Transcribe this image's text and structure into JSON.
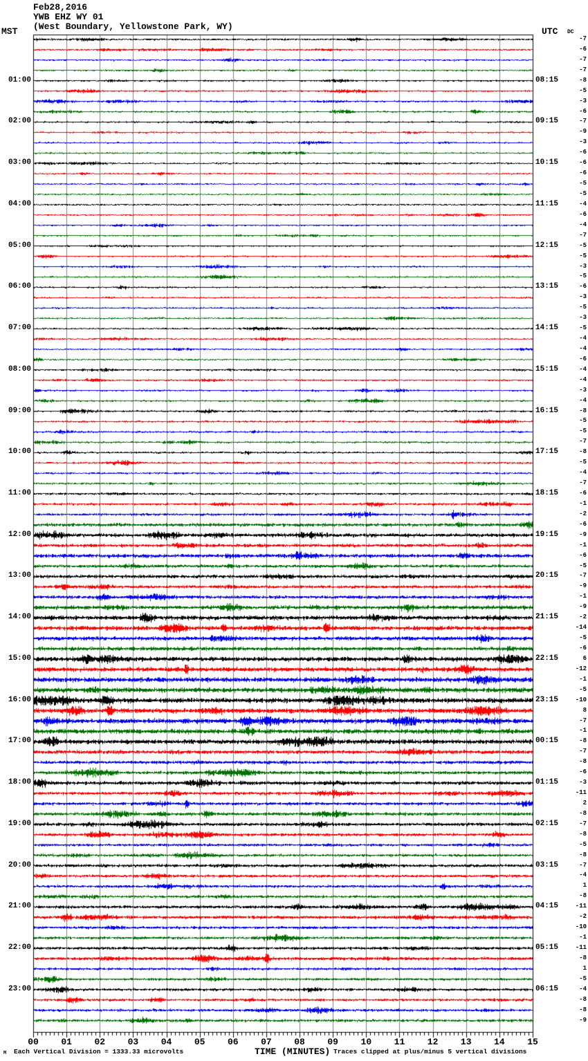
{
  "header": {
    "date": "Feb28,2016",
    "station": "YWB EHZ WY 01",
    "location": "(West Boundary, Yellowstone Park, WY)"
  },
  "axes": {
    "left_header": "MST",
    "right_header": "UTC",
    "dc_header": "DC"
  },
  "footer": {
    "corner_mark": "M",
    "scale_note": "Each Vertical Division = 1333.33 microvolts",
    "time_axis_label": "TIME (MINUTES)",
    "clip_note": "Traces clipped at plus/minus 5 vertical divisions"
  },
  "chart_data": {
    "type": "heliplot-seismogram",
    "title": "YWB EHZ WY 01 (West Boundary, Yellowstone Park, WY) Feb28,2016",
    "xlabel": "TIME (MINUTES)",
    "x_range_minutes": [
      0,
      15
    ],
    "x_tick_labels": [
      "00",
      "01",
      "02",
      "03",
      "04",
      "05",
      "06",
      "07",
      "08",
      "09",
      "10",
      "11",
      "12",
      "13",
      "14",
      "15"
    ],
    "minutes_per_line": 15,
    "rows_per_hour": 4,
    "left_time_zone": "MST",
    "right_time_zone": "UTC",
    "trace_color_cycle": [
      "#000000",
      "#ff0000",
      "#0000ee",
      "#007000"
    ],
    "grid_color": "#7f7f7f",
    "clip_divisions": 5,
    "microvolts_per_division": "1333.33",
    "rows": [
      {
        "m": "",
        "u": "",
        "dc": -7,
        "a": 1.0
      },
      {
        "m": "",
        "u": "",
        "dc": -6,
        "a": 1.0
      },
      {
        "m": "",
        "u": "",
        "dc": -7,
        "a": 1.0
      },
      {
        "m": "",
        "u": "",
        "dc": -7,
        "a": 1.0
      },
      {
        "m": "01:00",
        "u": "08:15",
        "dc": -8,
        "a": 1.0
      },
      {
        "m": "",
        "u": "",
        "dc": -5,
        "a": 1.0
      },
      {
        "m": "",
        "u": "",
        "dc": -3,
        "a": 1.0
      },
      {
        "m": "",
        "u": "",
        "dc": -6,
        "a": 1.0
      },
      {
        "m": "02:00",
        "u": "09:15",
        "dc": -7,
        "a": 0.9
      },
      {
        "m": "",
        "u": "",
        "dc": -9,
        "a": 0.9
      },
      {
        "m": "",
        "u": "",
        "dc": -3,
        "a": 0.9
      },
      {
        "m": "",
        "u": "",
        "dc": -6,
        "a": 0.9
      },
      {
        "m": "03:00",
        "u": "10:15",
        "dc": -6,
        "a": 0.9
      },
      {
        "m": "",
        "u": "",
        "dc": -6,
        "a": 0.9
      },
      {
        "m": "",
        "u": "",
        "dc": -5,
        "a": 0.9
      },
      {
        "m": "",
        "u": "",
        "dc": -5,
        "a": 0.9
      },
      {
        "m": "04:00",
        "u": "11:15",
        "dc": -4,
        "a": 0.9
      },
      {
        "m": "",
        "u": "",
        "dc": -6,
        "a": 0.9
      },
      {
        "m": "",
        "u": "",
        "dc": -4,
        "a": 0.9
      },
      {
        "m": "",
        "u": "",
        "dc": -7,
        "a": 0.9
      },
      {
        "m": "05:00",
        "u": "12:15",
        "dc": -5,
        "a": 0.9
      },
      {
        "m": "",
        "u": "",
        "dc": -5,
        "a": 0.9
      },
      {
        "m": "",
        "u": "",
        "dc": -3,
        "a": 0.9
      },
      {
        "m": "",
        "u": "",
        "dc": -5,
        "a": 0.9
      },
      {
        "m": "06:00",
        "u": "13:15",
        "dc": -6,
        "a": 0.9
      },
      {
        "m": "",
        "u": "",
        "dc": -3,
        "a": 0.9
      },
      {
        "m": "",
        "u": "",
        "dc": -5,
        "a": 0.9
      },
      {
        "m": "",
        "u": "",
        "dc": -3,
        "a": 0.9
      },
      {
        "m": "07:00",
        "u": "14:15",
        "dc": -5,
        "a": 0.9
      },
      {
        "m": "",
        "u": "",
        "dc": -4,
        "a": 0.9
      },
      {
        "m": "",
        "u": "",
        "dc": -4,
        "a": 0.9
      },
      {
        "m": "",
        "u": "",
        "dc": -6,
        "a": 0.9
      },
      {
        "m": "08:00",
        "u": "15:15",
        "dc": -4,
        "a": 1.0
      },
      {
        "m": "",
        "u": "",
        "dc": -4,
        "a": 1.0
      },
      {
        "m": "",
        "u": "",
        "dc": -3,
        "a": 1.0
      },
      {
        "m": "",
        "u": "",
        "dc": -4,
        "a": 1.0
      },
      {
        "m": "09:00",
        "u": "16:15",
        "dc": -8,
        "a": 1.1
      },
      {
        "m": "",
        "u": "",
        "dc": -5,
        "a": 1.1
      },
      {
        "m": "",
        "u": "",
        "dc": -5,
        "a": 1.1
      },
      {
        "m": "",
        "u": "",
        "dc": -7,
        "a": 1.1
      },
      {
        "m": "10:00",
        "u": "17:15",
        "dc": -8,
        "a": 1.1
      },
      {
        "m": "",
        "u": "",
        "dc": -5,
        "a": 1.1
      },
      {
        "m": "",
        "u": "",
        "dc": -4,
        "a": 1.1
      },
      {
        "m": "",
        "u": "",
        "dc": -7,
        "a": 1.1
      },
      {
        "m": "11:00",
        "u": "18:15",
        "dc": -6,
        "a": 1.2
      },
      {
        "m": "",
        "u": "",
        "dc": -1,
        "a": 1.4
      },
      {
        "m": "",
        "u": "",
        "dc": -2,
        "a": 1.4
      },
      {
        "m": "",
        "u": "",
        "dc": -6,
        "a": 2.0
      },
      {
        "m": "12:00",
        "u": "19:15",
        "dc": -9,
        "a": 2.2
      },
      {
        "m": "",
        "u": "",
        "dc": -1,
        "a": 2.0
      },
      {
        "m": "",
        "u": "",
        "dc": -6,
        "a": 2.2
      },
      {
        "m": "",
        "u": "",
        "dc": -5,
        "a": 1.8
      },
      {
        "m": "13:00",
        "u": "20:15",
        "dc": -7,
        "a": 2.0
      },
      {
        "m": "",
        "u": "",
        "dc": -9,
        "a": 1.8
      },
      {
        "m": "",
        "u": "",
        "dc": -1,
        "a": 1.9
      },
      {
        "m": "",
        "u": "",
        "dc": -9,
        "a": 2.4
      },
      {
        "m": "14:00",
        "u": "21:15",
        "dc": -2,
        "a": 2.6
      },
      {
        "m": "",
        "u": "",
        "dc": -14,
        "a": 2.6
      },
      {
        "m": "",
        "u": "",
        "dc": -5,
        "a": 2.4
      },
      {
        "m": "",
        "u": "",
        "dc": -6,
        "a": 2.3
      },
      {
        "m": "15:00",
        "u": "22:15",
        "dc": 6,
        "a": 2.7
      },
      {
        "m": "",
        "u": "",
        "dc": -12,
        "a": 2.7
      },
      {
        "m": "",
        "u": "",
        "dc": -1,
        "a": 2.9
      },
      {
        "m": "",
        "u": "",
        "dc": -5,
        "a": 3.0
      },
      {
        "m": "16:00",
        "u": "23:15",
        "dc": -10,
        "a": 3.0
      },
      {
        "m": "",
        "u": "",
        "dc": 8,
        "a": 2.8
      },
      {
        "m": "",
        "u": "",
        "dc": -7,
        "a": 3.0
      },
      {
        "m": "",
        "u": "",
        "dc": -1,
        "a": 2.9
      },
      {
        "m": "17:00",
        "u": "00:15",
        "dc": -8,
        "a": 2.8
      },
      {
        "m": "",
        "u": "",
        "dc": -7,
        "a": 2.2
      },
      {
        "m": "",
        "u": "",
        "dc": -8,
        "a": 1.9
      },
      {
        "m": "",
        "u": "",
        "dc": -6,
        "a": 2.0
      },
      {
        "m": "18:00",
        "u": "01:15",
        "dc": -3,
        "a": 2.1
      },
      {
        "m": "",
        "u": "",
        "dc": -11,
        "a": 1.8
      },
      {
        "m": "",
        "u": "",
        "dc": 2,
        "a": 1.8
      },
      {
        "m": "",
        "u": "",
        "dc": -8,
        "a": 1.9
      },
      {
        "m": "19:00",
        "u": "02:15",
        "dc": -7,
        "a": 1.9
      },
      {
        "m": "",
        "u": "",
        "dc": -8,
        "a": 1.7
      },
      {
        "m": "",
        "u": "",
        "dc": -5,
        "a": 1.6
      },
      {
        "m": "",
        "u": "",
        "dc": -8,
        "a": 1.6
      },
      {
        "m": "20:00",
        "u": "03:15",
        "dc": -7,
        "a": 1.7
      },
      {
        "m": "",
        "u": "",
        "dc": -4,
        "a": 1.6
      },
      {
        "m": "",
        "u": "",
        "dc": 1,
        "a": 1.6
      },
      {
        "m": "",
        "u": "",
        "dc": -8,
        "a": 1.6
      },
      {
        "m": "21:00",
        "u": "04:15",
        "dc": -11,
        "a": 1.8
      },
      {
        "m": "",
        "u": "",
        "dc": -2,
        "a": 1.9
      },
      {
        "m": "",
        "u": "",
        "dc": -10,
        "a": 1.6
      },
      {
        "m": "",
        "u": "",
        "dc": -1,
        "a": 1.6
      },
      {
        "m": "22:00",
        "u": "05:15",
        "dc": -11,
        "a": 1.8
      },
      {
        "m": "",
        "u": "",
        "dc": -8,
        "a": 1.9
      },
      {
        "m": "",
        "u": "",
        "dc": 1,
        "a": 1.5
      },
      {
        "m": "",
        "u": "",
        "dc": -5,
        "a": 1.5
      },
      {
        "m": "23:00",
        "u": "06:15",
        "dc": -4,
        "a": 1.6
      },
      {
        "m": "",
        "u": "",
        "dc": -8,
        "a": 1.5
      },
      {
        "m": "",
        "u": "",
        "dc": -8,
        "a": 1.6
      },
      {
        "m": "",
        "u": "",
        "dc": -9,
        "a": 1.6
      }
    ],
    "events": [
      {
        "row": 46,
        "minute": 12.6,
        "gain": 4.0,
        "width": 4
      },
      {
        "row": 57,
        "minute": 5.7,
        "gain": 4.0,
        "width": 4
      },
      {
        "row": 57,
        "minute": 8.8,
        "gain": 3.5,
        "width": 5
      },
      {
        "row": 60,
        "minute": 11.2,
        "gain": 3.0,
        "width": 8
      },
      {
        "row": 61,
        "minute": 4.6,
        "gain": 4.0,
        "width": 4
      },
      {
        "row": 64,
        "minute": 2.2,
        "gain": 3.0,
        "width": 10
      },
      {
        "row": 65,
        "minute": 2.3,
        "gain": 3.5,
        "width": 6
      },
      {
        "row": 68,
        "minute": 0.5,
        "gain": 3.5,
        "width": 12
      },
      {
        "row": 73,
        "minute": 9.0,
        "gain": 3.0,
        "width": 6
      },
      {
        "row": 74,
        "minute": 4.6,
        "gain": 4.5,
        "width": 4
      },
      {
        "row": 82,
        "minute": 12.3,
        "gain": 4.5,
        "width": 4
      },
      {
        "row": 85,
        "minute": 1.0,
        "gain": 3.5,
        "width": 8
      },
      {
        "row": 89,
        "minute": 7.0,
        "gain": 4.0,
        "width": 5
      }
    ]
  }
}
